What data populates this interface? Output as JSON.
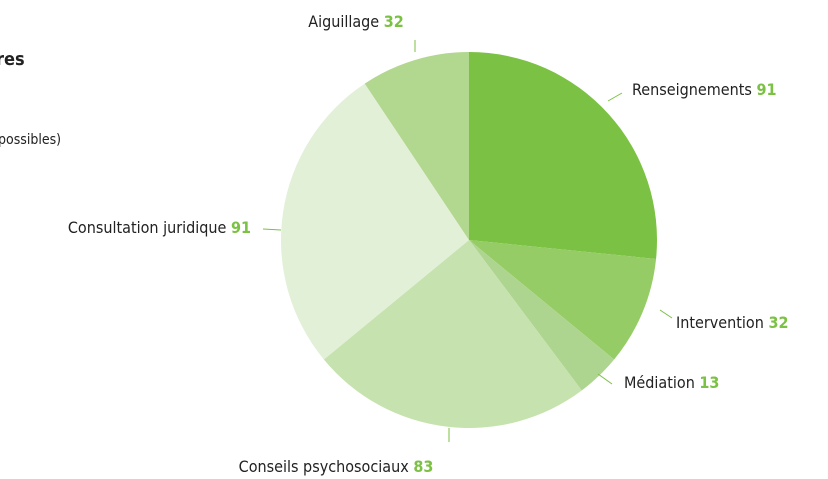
{
  "chart_data": {
    "type": "pie",
    "title": "res",
    "subtitle": "possibles)",
    "categories": [
      "Renseignements",
      "Intervention",
      "Médiation",
      "Conseils psychosociaux",
      "Consultation juridique",
      "Aiguillage"
    ],
    "values": [
      91,
      32,
      13,
      83,
      91,
      32
    ],
    "colors": [
      "#7bc143",
      "#95cc66",
      "#aed58f",
      "#c6e2ae",
      "#e2f0d8",
      "#b2d78f"
    ],
    "label_color": "#7bc143"
  }
}
